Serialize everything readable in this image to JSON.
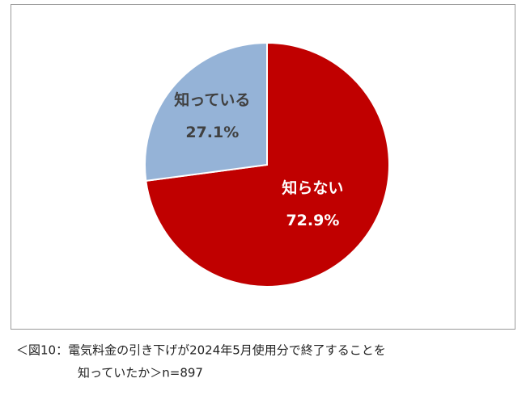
{
  "chart_data": {
    "type": "pie",
    "categories": [
      "知らない",
      "知っている"
    ],
    "values": [
      72.9,
      27.1
    ],
    "value_labels": [
      "72.9%",
      "27.1%"
    ],
    "colors": [
      "#c00000",
      "#95b3d7"
    ],
    "label_colors": [
      "#ffffff",
      "#404040"
    ],
    "caption": [
      "＜図10：電気料金の引き下げが2024年5月使用分で終了することを",
      "知っていたか＞n=897"
    ]
  }
}
